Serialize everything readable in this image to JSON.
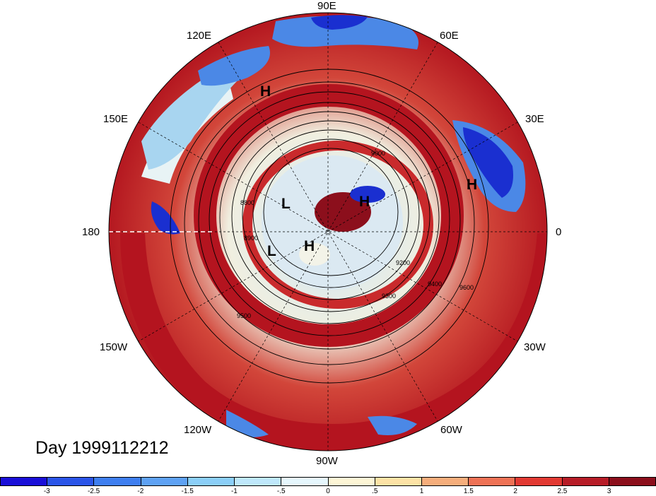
{
  "title_label": "Day 1999112212",
  "longitude_labels": [
    "90E",
    "60E",
    "30E",
    "0",
    "30W",
    "60W",
    "90W",
    "120W",
    "150W",
    "180",
    "150E",
    "120E"
  ],
  "pressure_centers": [
    "H",
    "H",
    "H",
    "L",
    "L",
    "H"
  ],
  "contour_labels": [
    "8800",
    "8900",
    "9000",
    "9200",
    "9300",
    "9400",
    "9500",
    "9600"
  ],
  "colorbar": {
    "tick_labels": [
      "-3",
      "-2.5",
      "-2",
      "-1.5",
      "-1",
      "-.5",
      "0",
      ".5",
      "1",
      "1.5",
      "2",
      "2.5",
      "3"
    ],
    "colors": [
      "#1a0fd8",
      "#2b55e8",
      "#3f7ff0",
      "#5fa2f4",
      "#8ccff8",
      "#bfe8fb",
      "#e6f7fd",
      "#fdf6d6",
      "#fde3a6",
      "#f6ae7c",
      "#ee7256",
      "#e23a33",
      "#b71d28",
      "#8c0f1c"
    ]
  },
  "map_colors": {
    "ocean_red": "#b4141f",
    "land_red": "#cf3a30",
    "pale": "#f3f3e8",
    "light_blue": "#a8d5f0",
    "mid_blue": "#4b88e6",
    "deep_blue": "#1a2fd0"
  }
}
